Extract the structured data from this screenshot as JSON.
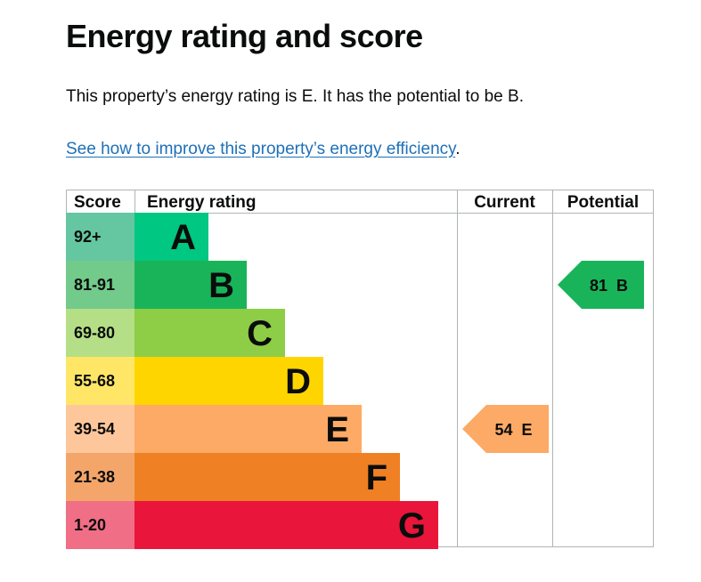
{
  "page": {
    "title": "Energy rating and score",
    "summary": "This property’s energy rating is E. It has the potential to be B.",
    "link_text": "See how to improve this property’s energy efficiency",
    "link_suffix": "."
  },
  "chart_data": {
    "type": "table",
    "headers": {
      "score": "Score",
      "rating": "Energy rating",
      "current": "Current",
      "potential": "Potential"
    },
    "bands": [
      {
        "score": "92+",
        "letter": "A",
        "color": "#00c781",
        "score_bg": "#64c7a1"
      },
      {
        "score": "81-91",
        "letter": "B",
        "color": "#19b459",
        "score_bg": "#72ca8b"
      },
      {
        "score": "69-80",
        "letter": "C",
        "color": "#8dce46",
        "score_bg": "#b4df86"
      },
      {
        "score": "55-68",
        "letter": "D",
        "color": "#ffd500",
        "score_bg": "#ffe666"
      },
      {
        "score": "39-54",
        "letter": "E",
        "color": "#fcaa65",
        "score_bg": "#fdc79b"
      },
      {
        "score": "21-38",
        "letter": "F",
        "color": "#ef8023",
        "score_bg": "#f4a66a"
      },
      {
        "score": "1-20",
        "letter": "G",
        "color": "#e9153b",
        "score_bg": "#f06e86"
      }
    ],
    "current": {
      "score": "54",
      "letter": "E",
      "band": "E",
      "color": "#fcaa65"
    },
    "potential": {
      "score": "81",
      "letter": "B",
      "band": "B",
      "color": "#19b459"
    }
  }
}
